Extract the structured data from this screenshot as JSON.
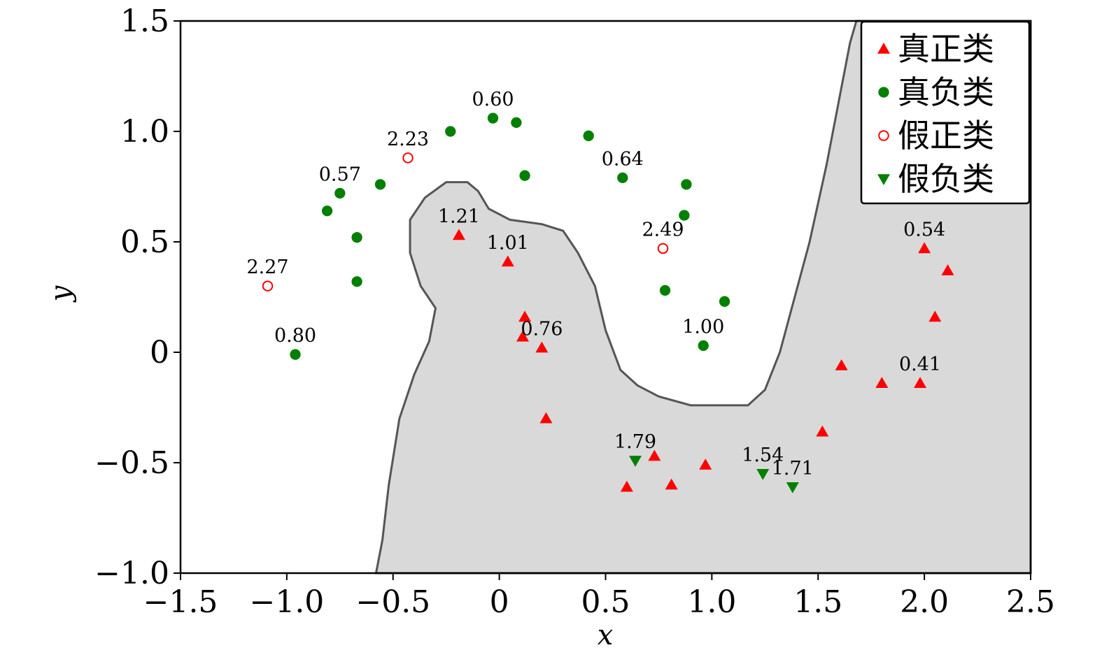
{
  "chart_data": {
    "type": "scatter",
    "xlabel": "x",
    "ylabel": "y",
    "xlim": [
      -1.5,
      2.5
    ],
    "ylim": [
      -1.0,
      1.5
    ],
    "xticks": [
      -1.5,
      -1.0,
      -0.5,
      0,
      0.5,
      1.0,
      1.5,
      2.0,
      2.5
    ],
    "xtick_labels": [
      "−1.5",
      "−1.0",
      "−0.5",
      "0",
      "0.5",
      "1.0",
      "1.5",
      "2.0",
      "2.5"
    ],
    "yticks": [
      -1.0,
      -0.5,
      0,
      0.5,
      1.0,
      1.5
    ],
    "ytick_labels": [
      "−1.0",
      "−0.5",
      "0",
      "0.5",
      "1.0",
      "1.5"
    ],
    "legend_position": "top-right",
    "grid": false,
    "region_color": "#d9d9d9",
    "boundary": [
      [
        -0.58,
        -1.0
      ],
      [
        -0.55,
        -0.85
      ],
      [
        -0.52,
        -0.6
      ],
      [
        -0.47,
        -0.3
      ],
      [
        -0.4,
        -0.1
      ],
      [
        -0.33,
        0.05
      ],
      [
        -0.3,
        0.2
      ],
      [
        -0.37,
        0.3
      ],
      [
        -0.42,
        0.45
      ],
      [
        -0.42,
        0.6
      ],
      [
        -0.35,
        0.7
      ],
      [
        -0.25,
        0.77
      ],
      [
        -0.15,
        0.77
      ],
      [
        -0.1,
        0.73
      ],
      [
        -0.05,
        0.65
      ],
      [
        0.05,
        0.6
      ],
      [
        0.2,
        0.58
      ],
      [
        0.3,
        0.55
      ],
      [
        0.37,
        0.45
      ],
      [
        0.45,
        0.3
      ],
      [
        0.5,
        0.1
      ],
      [
        0.57,
        -0.08
      ],
      [
        0.65,
        -0.15
      ],
      [
        0.75,
        -0.2
      ],
      [
        0.9,
        -0.24
      ],
      [
        1.17,
        -0.24
      ],
      [
        1.25,
        -0.17
      ],
      [
        1.32,
        0.0
      ],
      [
        1.39,
        0.25
      ],
      [
        1.46,
        0.5
      ],
      [
        1.54,
        0.85
      ],
      [
        1.6,
        1.15
      ],
      [
        1.65,
        1.4
      ],
      [
        1.68,
        1.5
      ]
    ],
    "series": [
      {
        "name": "真正类",
        "marker": "triangle-up",
        "color": "#ff0000",
        "filled": true,
        "points": [
          {
            "x": -0.19,
            "y": 0.53,
            "label": "1.21"
          },
          {
            "x": 0.04,
            "y": 0.41,
            "label": "1.01"
          },
          {
            "x": 0.12,
            "y": 0.16,
            "label": ""
          },
          {
            "x": 0.11,
            "y": 0.07,
            "label": ""
          },
          {
            "x": 0.2,
            "y": 0.02,
            "label": "0.76"
          },
          {
            "x": 0.22,
            "y": -0.3,
            "label": ""
          },
          {
            "x": 0.6,
            "y": -0.61,
            "label": ""
          },
          {
            "x": 0.73,
            "y": -0.47,
            "label": ""
          },
          {
            "x": 0.81,
            "y": -0.6,
            "label": ""
          },
          {
            "x": 0.97,
            "y": -0.51,
            "label": ""
          },
          {
            "x": 1.52,
            "y": -0.36,
            "label": ""
          },
          {
            "x": 1.61,
            "y": -0.06,
            "label": ""
          },
          {
            "x": 1.8,
            "y": -0.14,
            "label": ""
          },
          {
            "x": 1.98,
            "y": -0.14,
            "label": "0.41"
          },
          {
            "x": 2.0,
            "y": 0.47,
            "label": "0.54"
          },
          {
            "x": 2.11,
            "y": 0.37,
            "label": ""
          },
          {
            "x": 2.05,
            "y": 0.16,
            "label": ""
          }
        ]
      },
      {
        "name": "真负类",
        "marker": "circle",
        "color": "#008000",
        "filled": true,
        "points": [
          {
            "x": -0.96,
            "y": -0.01,
            "label": "0.80"
          },
          {
            "x": -0.67,
            "y": 0.32,
            "label": ""
          },
          {
            "x": -0.67,
            "y": 0.52,
            "label": ""
          },
          {
            "x": -0.81,
            "y": 0.64,
            "label": ""
          },
          {
            "x": -0.75,
            "y": 0.72,
            "label": "0.57"
          },
          {
            "x": -0.56,
            "y": 0.76,
            "label": ""
          },
          {
            "x": -0.23,
            "y": 1.0,
            "label": ""
          },
          {
            "x": -0.03,
            "y": 1.06,
            "label": "0.60"
          },
          {
            "x": 0.08,
            "y": 1.04,
            "label": ""
          },
          {
            "x": 0.12,
            "y": 0.8,
            "label": ""
          },
          {
            "x": 0.42,
            "y": 0.98,
            "label": ""
          },
          {
            "x": 0.58,
            "y": 0.79,
            "label": "0.64"
          },
          {
            "x": 0.88,
            "y": 0.76,
            "label": ""
          },
          {
            "x": 0.87,
            "y": 0.62,
            "label": ""
          },
          {
            "x": 0.78,
            "y": 0.28,
            "label": ""
          },
          {
            "x": 1.06,
            "y": 0.23,
            "label": ""
          },
          {
            "x": 0.96,
            "y": 0.03,
            "label": "1.00"
          }
        ]
      },
      {
        "name": "假正类",
        "marker": "circle",
        "color": "#ff0000",
        "filled": false,
        "points": [
          {
            "x": -1.09,
            "y": 0.3,
            "label": "2.27"
          },
          {
            "x": -0.43,
            "y": 0.88,
            "label": "2.23"
          },
          {
            "x": 0.77,
            "y": 0.47,
            "label": "2.49"
          }
        ]
      },
      {
        "name": "假负类",
        "marker": "triangle-down",
        "color": "#008000",
        "filled": true,
        "points": [
          {
            "x": 0.64,
            "y": -0.49,
            "label": "1.79"
          },
          {
            "x": 1.24,
            "y": -0.55,
            "label": "1.54"
          },
          {
            "x": 1.38,
            "y": -0.61,
            "label": "1.71"
          }
        ]
      }
    ]
  }
}
